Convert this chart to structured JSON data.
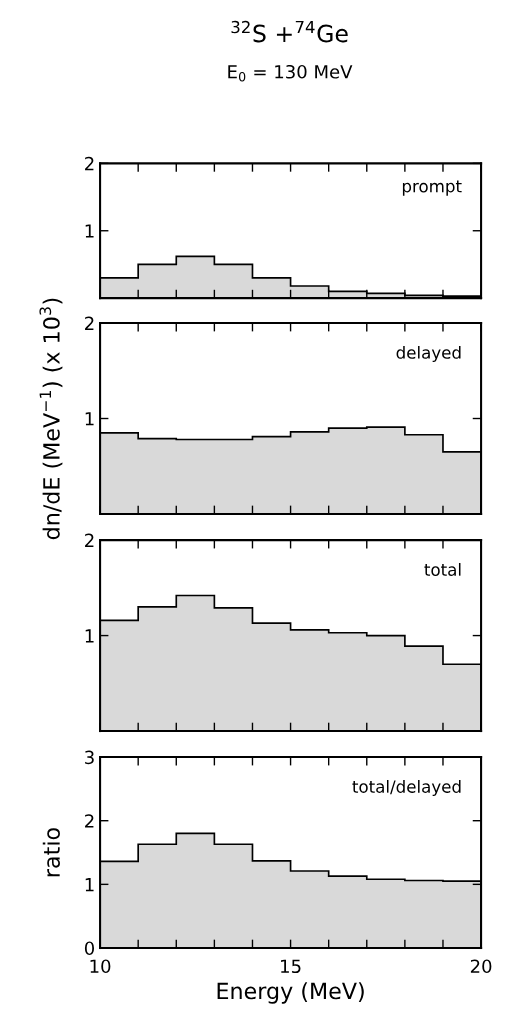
{
  "chart_data": [
    {
      "type": "histogram",
      "title": "$^{32}$S +$^{74}$Ge",
      "subtitle": "E$_{0}$ = 130 MeV",
      "bins": [
        10,
        11,
        12,
        13,
        14,
        15,
        16,
        17,
        18,
        19,
        20
      ],
      "values": [
        0.3,
        0.5,
        0.62,
        0.5,
        0.3,
        0.18,
        0.1,
        0.07,
        0.04,
        0.03
      ],
      "color": "#d9d9d9",
      "xlim": [
        10,
        20
      ],
      "xticks": [
        10,
        11,
        12,
        13,
        14,
        15,
        16,
        17,
        18,
        19,
        20
      ],
      "ylim": [
        0,
        2
      ],
      "yticks": [
        1,
        2
      ],
      "tick_labels": "y",
      "annotations": [
        "prompt"
      ]
    },
    {
      "type": "histogram",
      "ylabel": "dn/dE (MeV$^{−1}$) (x 10$^{3}$)",
      "bins": [
        10,
        11,
        12,
        13,
        14,
        15,
        16,
        17,
        18,
        19,
        20
      ],
      "values": [
        0.85,
        0.79,
        0.78,
        0.78,
        0.81,
        0.86,
        0.9,
        0.91,
        0.83,
        0.65
      ],
      "color": "#d9d9d9",
      "xlim": [
        10,
        20
      ],
      "xticks": [
        10,
        11,
        12,
        13,
        14,
        15,
        16,
        17,
        18,
        19,
        20
      ],
      "ylim": [
        0,
        2
      ],
      "yticks": [
        1,
        2
      ],
      "tick_labels": "y",
      "annotations": [
        "delayed"
      ]
    },
    {
      "type": "histogram",
      "bins": [
        10,
        11,
        12,
        13,
        14,
        15,
        16,
        17,
        18,
        19,
        20
      ],
      "values": [
        1.16,
        1.3,
        1.42,
        1.29,
        1.13,
        1.06,
        1.03,
        1.0,
        0.89,
        0.7
      ],
      "color": "#d9d9d9",
      "xlim": [
        10,
        20
      ],
      "xticks": [
        10,
        11,
        12,
        13,
        14,
        15,
        16,
        17,
        18,
        19,
        20
      ],
      "ylim": [
        0,
        2
      ],
      "yticks": [
        1,
        2
      ],
      "tick_labels": "y",
      "annotations": [
        "total"
      ]
    },
    {
      "type": "histogram",
      "xlabel": "Energy (MeV)",
      "ylabel": "ratio",
      "bins": [
        10,
        11,
        12,
        13,
        14,
        15,
        16,
        17,
        18,
        19,
        20
      ],
      "values": [
        1.36,
        1.63,
        1.8,
        1.63,
        1.37,
        1.21,
        1.13,
        1.08,
        1.06,
        1.05
      ],
      "color": "#d9d9d9",
      "xlim": [
        10,
        20
      ],
      "xticks": [
        10,
        {
          "value": 11,
          "label": null
        },
        {
          "value": 12,
          "label": null
        },
        {
          "value": 13,
          "label": null
        },
        {
          "value": 14,
          "label": null
        },
        15,
        {
          "value": 16,
          "label": null
        },
        {
          "value": 17,
          "label": null
        },
        {
          "value": 18,
          "label": null
        },
        {
          "value": 19,
          "label": null
        },
        20
      ],
      "ylim": [
        0,
        3
      ],
      "yticks": [
        0,
        1,
        2,
        3
      ],
      "annotations": [
        "total/delayed"
      ]
    }
  ]
}
